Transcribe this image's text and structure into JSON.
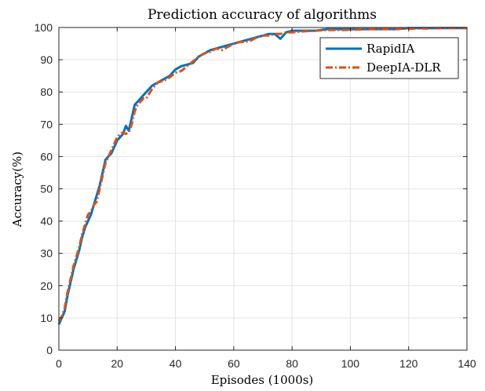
{
  "chart_data": {
    "type": "line",
    "title": "Prediction accuracy of algorithms",
    "xlabel": "Episodes (1000s)",
    "ylabel": "Accuracy(%)",
    "xlim": [
      0,
      140
    ],
    "ylim": [
      0,
      100
    ],
    "xticks": [
      0,
      20,
      40,
      60,
      80,
      100,
      120,
      140
    ],
    "yticks": [
      0,
      10,
      20,
      30,
      40,
      50,
      60,
      70,
      80,
      90,
      100
    ],
    "grid": true,
    "legend_position": "top-right",
    "series": [
      {
        "name": "RapidIA",
        "color": "#0072BD",
        "style": "solid",
        "points": [
          [
            0,
            8
          ],
          [
            1,
            10
          ],
          [
            2,
            12
          ],
          [
            3,
            17
          ],
          [
            4,
            21
          ],
          [
            5,
            25
          ],
          [
            6,
            28
          ],
          [
            7,
            31
          ],
          [
            8,
            35
          ],
          [
            9,
            38
          ],
          [
            10,
            40
          ],
          [
            11,
            42
          ],
          [
            12,
            45
          ],
          [
            13,
            48
          ],
          [
            14,
            51
          ],
          [
            15,
            55
          ],
          [
            16,
            59
          ],
          [
            17,
            60
          ],
          [
            18,
            61
          ],
          [
            19,
            63
          ],
          [
            20,
            65
          ],
          [
            21,
            66
          ],
          [
            22,
            67
          ],
          [
            23,
            69.5
          ],
          [
            24,
            68
          ],
          [
            25,
            72
          ],
          [
            26,
            76
          ],
          [
            27,
            77
          ],
          [
            28,
            78
          ],
          [
            29,
            79
          ],
          [
            30,
            80
          ],
          [
            32,
            82
          ],
          [
            34,
            83
          ],
          [
            36,
            84
          ],
          [
            38,
            85
          ],
          [
            40,
            87
          ],
          [
            42,
            88
          ],
          [
            44,
            88.5
          ],
          [
            46,
            89
          ],
          [
            48,
            91
          ],
          [
            50,
            92
          ],
          [
            52,
            93
          ],
          [
            54,
            93.5
          ],
          [
            56,
            94
          ],
          [
            58,
            94.5
          ],
          [
            60,
            95
          ],
          [
            62,
            95.5
          ],
          [
            64,
            96
          ],
          [
            66,
            96.5
          ],
          [
            68,
            97
          ],
          [
            70,
            97.5
          ],
          [
            72,
            98
          ],
          [
            74,
            98
          ],
          [
            76,
            96.5
          ],
          [
            78,
            98.5
          ],
          [
            80,
            99
          ],
          [
            84,
            99
          ],
          [
            88,
            99
          ],
          [
            92,
            99.5
          ],
          [
            96,
            99.5
          ],
          [
            100,
            99.5
          ],
          [
            104,
            99.5
          ],
          [
            108,
            99.5
          ],
          [
            112,
            99.5
          ],
          [
            116,
            99.5
          ],
          [
            120,
            99.8
          ],
          [
            124,
            99.8
          ],
          [
            128,
            99.8
          ],
          [
            132,
            99.8
          ],
          [
            136,
            99.8
          ],
          [
            140,
            99.8
          ]
        ]
      },
      {
        "name": "DeepIA-DLR",
        "color": "#D95319",
        "style": "dashdot",
        "points": [
          [
            0,
            9
          ],
          [
            1,
            10.5
          ],
          [
            2,
            13
          ],
          [
            3,
            18
          ],
          [
            4,
            22
          ],
          [
            5,
            26
          ],
          [
            6,
            29
          ],
          [
            7,
            32
          ],
          [
            8,
            36
          ],
          [
            9,
            39
          ],
          [
            10,
            42
          ],
          [
            11,
            43
          ],
          [
            12,
            45
          ],
          [
            13,
            46
          ],
          [
            14,
            50
          ],
          [
            15,
            54
          ],
          [
            16,
            58
          ],
          [
            17,
            60
          ],
          [
            18,
            62
          ],
          [
            19,
            64
          ],
          [
            20,
            66
          ],
          [
            21,
            67
          ],
          [
            22,
            67.5
          ],
          [
            23,
            67
          ],
          [
            24,
            67.5
          ],
          [
            25,
            70
          ],
          [
            26,
            74
          ],
          [
            27,
            76
          ],
          [
            28,
            77
          ],
          [
            29,
            78
          ],
          [
            30,
            78
          ],
          [
            32,
            81
          ],
          [
            34,
            83
          ],
          [
            36,
            83.5
          ],
          [
            38,
            84.5
          ],
          [
            40,
            86
          ],
          [
            42,
            86.5
          ],
          [
            44,
            88
          ],
          [
            46,
            89.5
          ],
          [
            48,
            91
          ],
          [
            50,
            92
          ],
          [
            52,
            92.5
          ],
          [
            54,
            93.5
          ],
          [
            56,
            93
          ],
          [
            58,
            94
          ],
          [
            60,
            95
          ],
          [
            62,
            95.5
          ],
          [
            64,
            95.5
          ],
          [
            66,
            96
          ],
          [
            68,
            97
          ],
          [
            70,
            97.5
          ],
          [
            72,
            97.5
          ],
          [
            74,
            98
          ],
          [
            76,
            98
          ],
          [
            78,
            98.5
          ],
          [
            80,
            98.5
          ],
          [
            84,
            98.8
          ],
          [
            88,
            99
          ],
          [
            92,
            99.2
          ],
          [
            96,
            99.2
          ],
          [
            100,
            99.3
          ],
          [
            104,
            99.4
          ],
          [
            108,
            99.5
          ],
          [
            112,
            99.5
          ],
          [
            116,
            99.6
          ],
          [
            120,
            99.6
          ],
          [
            124,
            99.7
          ],
          [
            128,
            99.7
          ],
          [
            132,
            99.8
          ],
          [
            136,
            99.8
          ],
          [
            140,
            99.8
          ]
        ]
      }
    ]
  }
}
